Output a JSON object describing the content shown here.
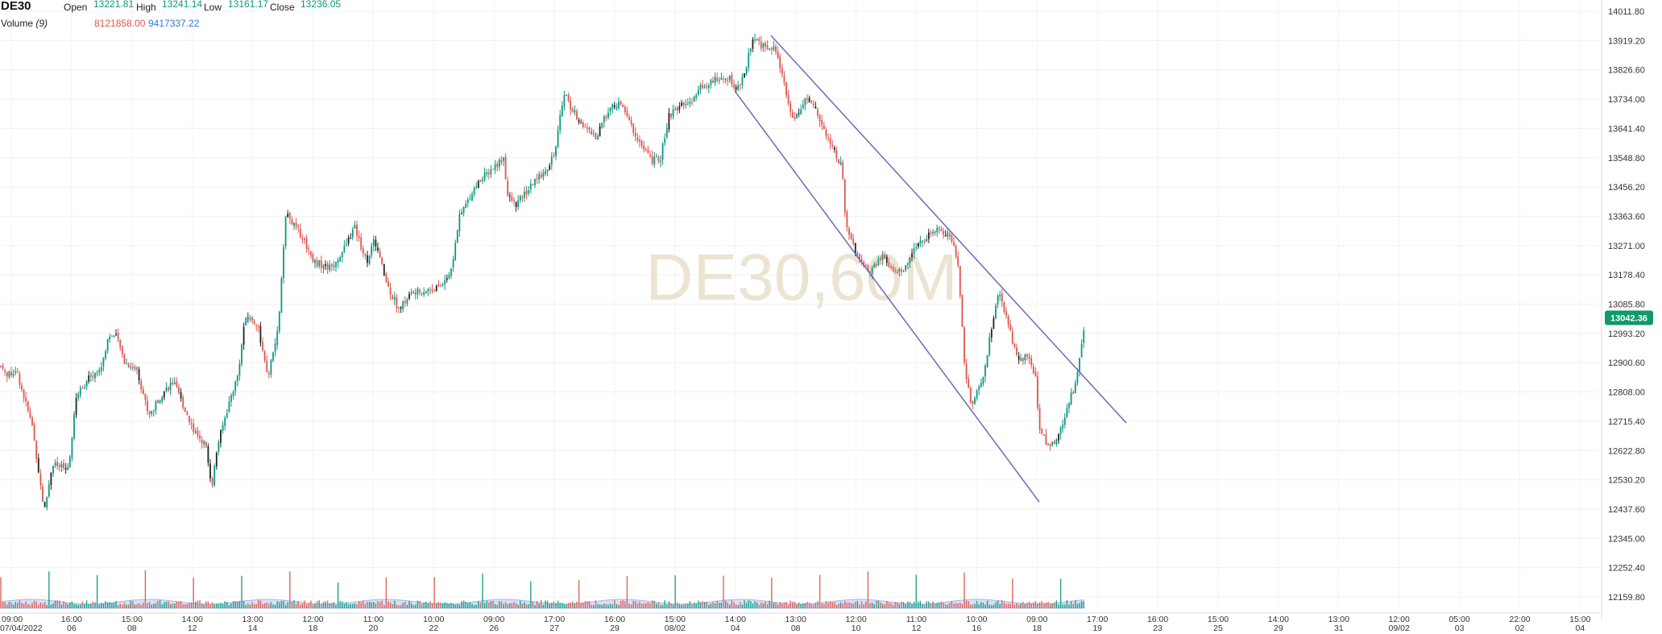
{
  "header": {
    "symbol": "DE30",
    "open_label": "Open",
    "open_value": "13221.81",
    "high_label": "High",
    "high_value": "13241.14",
    "low_label": "Low",
    "low_value": "13161.17",
    "close_label": "Close",
    "close_value": "13236.05",
    "volume_label": "Volume",
    "volume_period": "(9)",
    "volume_value": "8121858.00",
    "volume_ma_value": "9417337.22"
  },
  "watermark": "DE30,60M",
  "colors": {
    "up": "#089981",
    "down": "#e0544d",
    "neutral": "#222222",
    "channel": "#6a6ab8",
    "volume_ma_fill": "#b7c8ee",
    "price_badge": "#0f9a6c"
  },
  "chart_data": {
    "type": "candlestick",
    "symbol": "DE30",
    "timeframe": "60M",
    "y_axis": {
      "ticks": [
        "14011.80",
        "13919.20",
        "13826.60",
        "13734.00",
        "13641.40",
        "13548.80",
        "13456.20",
        "13363.60",
        "13271.00",
        "13178.40",
        "13085.80",
        "12993.20",
        "12900.60",
        "12808.00",
        "12715.40",
        "12622.80",
        "12530.20",
        "12437.60",
        "12345.00",
        "12252.40",
        "12159.80"
      ],
      "range": [
        12130,
        14030
      ]
    },
    "current_price": "13042.36",
    "x_axis": [
      {
        "time": "09:00",
        "date": "07/04/2022"
      },
      {
        "time": "16:00",
        "date": "06"
      },
      {
        "time": "15:00",
        "date": "08"
      },
      {
        "time": "14:00",
        "date": "12"
      },
      {
        "time": "13:00",
        "date": "14"
      },
      {
        "time": "12:00",
        "date": "18"
      },
      {
        "time": "11:00",
        "date": "20"
      },
      {
        "time": "10:00",
        "date": "22"
      },
      {
        "time": "09:00",
        "date": "26"
      },
      {
        "time": "17:00",
        "date": "27"
      },
      {
        "time": "16:00",
        "date": "29"
      },
      {
        "time": "15:00",
        "date": "08/02"
      },
      {
        "time": "14:00",
        "date": "04"
      },
      {
        "time": "13:00",
        "date": "08"
      },
      {
        "time": "12:00",
        "date": "10"
      },
      {
        "time": "11:00",
        "date": "12"
      },
      {
        "time": "10:00",
        "date": "16"
      },
      {
        "time": "09:00",
        "date": "18"
      },
      {
        "time": "17:00",
        "date": "19"
      },
      {
        "time": "16:00",
        "date": "23"
      },
      {
        "time": "15:00",
        "date": "25"
      },
      {
        "time": "14:00",
        "date": "29"
      },
      {
        "time": "13:00",
        "date": "31"
      },
      {
        "time": "12:00",
        "date": "09/02"
      },
      {
        "time": "05:00",
        "date": "03"
      },
      {
        "time": "22:00",
        "date": "02"
      },
      {
        "time": "15:00",
        "date": "04"
      }
    ],
    "price_path": [
      [
        0,
        12890
      ],
      [
        10,
        12860
      ],
      [
        20,
        12880
      ],
      [
        30,
        12790
      ],
      [
        40,
        12700
      ],
      [
        55,
        12430
      ],
      [
        65,
        12580
      ],
      [
        85,
        12560
      ],
      [
        95,
        12800
      ],
      [
        110,
        12850
      ],
      [
        125,
        12880
      ],
      [
        135,
        12990
      ],
      [
        145,
        12980
      ],
      [
        155,
        12900
      ],
      [
        170,
        12880
      ],
      [
        185,
        12730
      ],
      [
        200,
        12800
      ],
      [
        215,
        12840
      ],
      [
        225,
        12780
      ],
      [
        240,
        12690
      ],
      [
        255,
        12640
      ],
      [
        263,
        12510
      ],
      [
        270,
        12640
      ],
      [
        285,
        12780
      ],
      [
        295,
        12860
      ],
      [
        305,
        13050
      ],
      [
        320,
        13020
      ],
      [
        332,
        12850
      ],
      [
        345,
        13000
      ],
      [
        355,
        13370
      ],
      [
        375,
        13300
      ],
      [
        390,
        13220
      ],
      [
        410,
        13200
      ],
      [
        425,
        13250
      ],
      [
        440,
        13330
      ],
      [
        455,
        13220
      ],
      [
        465,
        13290
      ],
      [
        480,
        13150
      ],
      [
        495,
        13070
      ],
      [
        510,
        13120
      ],
      [
        530,
        13130
      ],
      [
        545,
        13140
      ],
      [
        560,
        13190
      ],
      [
        570,
        13360
      ],
      [
        590,
        13460
      ],
      [
        605,
        13500
      ],
      [
        625,
        13550
      ],
      [
        630,
        13430
      ],
      [
        640,
        13400
      ],
      [
        660,
        13460
      ],
      [
        680,
        13520
      ],
      [
        690,
        13580
      ],
      [
        700,
        13760
      ],
      [
        710,
        13700
      ],
      [
        725,
        13650
      ],
      [
        740,
        13610
      ],
      [
        755,
        13700
      ],
      [
        770,
        13720
      ],
      [
        785,
        13640
      ],
      [
        800,
        13570
      ],
      [
        810,
        13540
      ],
      [
        820,
        13550
      ],
      [
        830,
        13680
      ],
      [
        845,
        13710
      ],
      [
        860,
        13730
      ],
      [
        870,
        13770
      ],
      [
        890,
        13800
      ],
      [
        905,
        13800
      ],
      [
        915,
        13760
      ],
      [
        925,
        13820
      ],
      [
        935,
        13940
      ],
      [
        945,
        13900
      ],
      [
        960,
        13900
      ],
      [
        970,
        13820
      ],
      [
        985,
        13660
      ],
      [
        1000,
        13740
      ],
      [
        1015,
        13690
      ],
      [
        1030,
        13600
      ],
      [
        1045,
        13520
      ],
      [
        1050,
        13330
      ],
      [
        1065,
        13230
      ],
      [
        1080,
        13190
      ],
      [
        1095,
        13240
      ],
      [
        1110,
        13180
      ],
      [
        1125,
        13200
      ],
      [
        1140,
        13280
      ],
      [
        1155,
        13310
      ],
      [
        1165,
        13320
      ],
      [
        1180,
        13300
      ],
      [
        1190,
        13200
      ],
      [
        1197,
        12900
      ],
      [
        1205,
        12770
      ],
      [
        1220,
        12840
      ],
      [
        1230,
        13000
      ],
      [
        1240,
        13120
      ],
      [
        1250,
        13030
      ],
      [
        1265,
        12900
      ],
      [
        1275,
        12930
      ],
      [
        1285,
        12860
      ],
      [
        1290,
        12700
      ],
      [
        1300,
        12640
      ],
      [
        1310,
        12640
      ],
      [
        1318,
        12700
      ],
      [
        1325,
        12770
      ],
      [
        1335,
        12830
      ],
      [
        1340,
        12910
      ],
      [
        1347,
        13040
      ]
    ],
    "channel_lines": [
      {
        "x1": 957,
        "y1": 13935,
        "x2": 1398,
        "y2": 12710
      },
      {
        "x1": 912,
        "y1": 13760,
        "x2": 1290,
        "y2": 12460
      }
    ]
  }
}
